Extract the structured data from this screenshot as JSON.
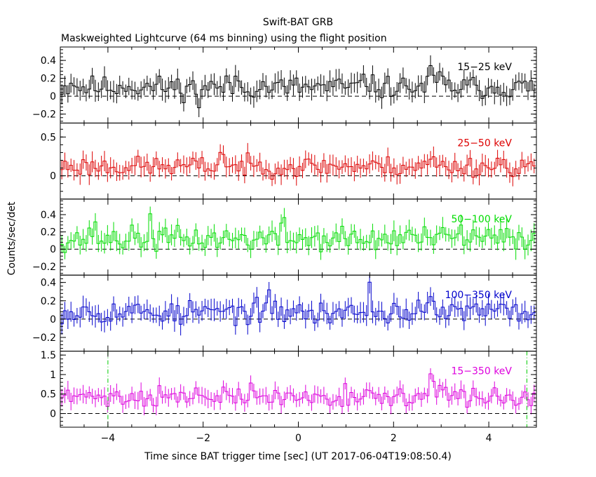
{
  "chart_data": {
    "type": "line",
    "title": "Swift-BAT GRB",
    "subtitle": "Maskweighted Lightcurve (64 ms binning) using the flight position",
    "xlabel": "Time since BAT trigger time [sec] (UT 2017-06-04T19:08:50.4)",
    "ylabel": "Counts/sec/det",
    "xlim": [
      -5,
      5
    ],
    "x_ticks": [
      -4,
      -2,
      0,
      2,
      4
    ],
    "bin_width": 0.064,
    "grid": false,
    "marker_lines": [
      -4.0,
      4.8
    ],
    "panels": [
      {
        "name": "15−25 keV",
        "color": "#000000",
        "ylim": [
          -0.3,
          0.55
        ],
        "y_ticks": [
          -0.2,
          0,
          0.2,
          0.4
        ],
        "y_tick_labels": [
          "−0.2",
          "0",
          "0.2",
          "0.4"
        ],
        "mean": 0.1,
        "err": 0.1,
        "noise": 0.09,
        "seed": 11,
        "peaks": [
          [
            -4.75,
            0.12
          ],
          [
            -3.6,
            0.08
          ],
          [
            -2.1,
            -0.2
          ],
          [
            -1.3,
            0.15
          ],
          [
            1.4,
            0.2
          ],
          [
            2.8,
            0.3
          ],
          [
            3.0,
            0.2
          ]
        ]
      },
      {
        "name": "25−50 keV",
        "color": "#dd0000",
        "ylim": [
          -0.3,
          0.68
        ],
        "y_ticks": [
          0,
          0.5
        ],
        "y_tick_labels": [
          "0",
          "0.5"
        ],
        "mean": 0.12,
        "err": 0.11,
        "noise": 0.09,
        "seed": 23,
        "peaks": [
          [
            -1.6,
            0.38
          ],
          [
            0.9,
            0.05
          ],
          [
            2.8,
            0.2
          ],
          [
            4.2,
            0.1
          ]
        ]
      },
      {
        "name": "50−100 keV",
        "color": "#00dd00",
        "ylim": [
          -0.3,
          0.58
        ],
        "y_ticks": [
          -0.2,
          0,
          0.2,
          0.4
        ],
        "y_tick_labels": [
          "−0.2",
          "0",
          "0.2",
          "0.4"
        ],
        "mean": 0.12,
        "err": 0.1,
        "noise": 0.1,
        "seed": 37,
        "peaks": [
          [
            -4.3,
            0.2
          ],
          [
            -3.1,
            0.25
          ],
          [
            -0.3,
            0.25
          ],
          [
            1.5,
            -0.15
          ],
          [
            2.3,
            0.15
          ],
          [
            3.4,
            0.15
          ]
        ]
      },
      {
        "name": "100−350 keV",
        "color": "#0000cc",
        "ylim": [
          -0.35,
          0.48
        ],
        "y_ticks": [
          -0.2,
          0,
          0.2,
          0.4
        ],
        "y_tick_labels": [
          "−0.2",
          "0",
          "0.2",
          "0.4"
        ],
        "mean": 0.08,
        "err": 0.1,
        "noise": 0.09,
        "seed": 53,
        "peaks": [
          [
            -4.5,
            0.1
          ],
          [
            -2.5,
            -0.15
          ],
          [
            -0.6,
            0.15
          ],
          [
            0.4,
            -0.2
          ],
          [
            1.5,
            0.25
          ],
          [
            2.8,
            0.15
          ]
        ]
      },
      {
        "name": "15−350 keV",
        "color": "#dd00dd",
        "ylim": [
          -0.35,
          1.6
        ],
        "y_ticks": [
          0,
          0.5,
          1,
          1.5
        ],
        "y_tick_labels": [
          "0",
          "0.5",
          "1",
          "1.5"
        ],
        "mean": 0.42,
        "err": 0.19,
        "noise": 0.17,
        "seed": 71,
        "peaks": [
          [
            -4.3,
            0.3
          ],
          [
            -2.9,
            0.15
          ],
          [
            -1.0,
            0.2
          ],
          [
            1.0,
            0.25
          ],
          [
            2.8,
            0.9
          ],
          [
            3.0,
            0.4
          ],
          [
            4.7,
            -0.2
          ]
        ]
      }
    ]
  }
}
